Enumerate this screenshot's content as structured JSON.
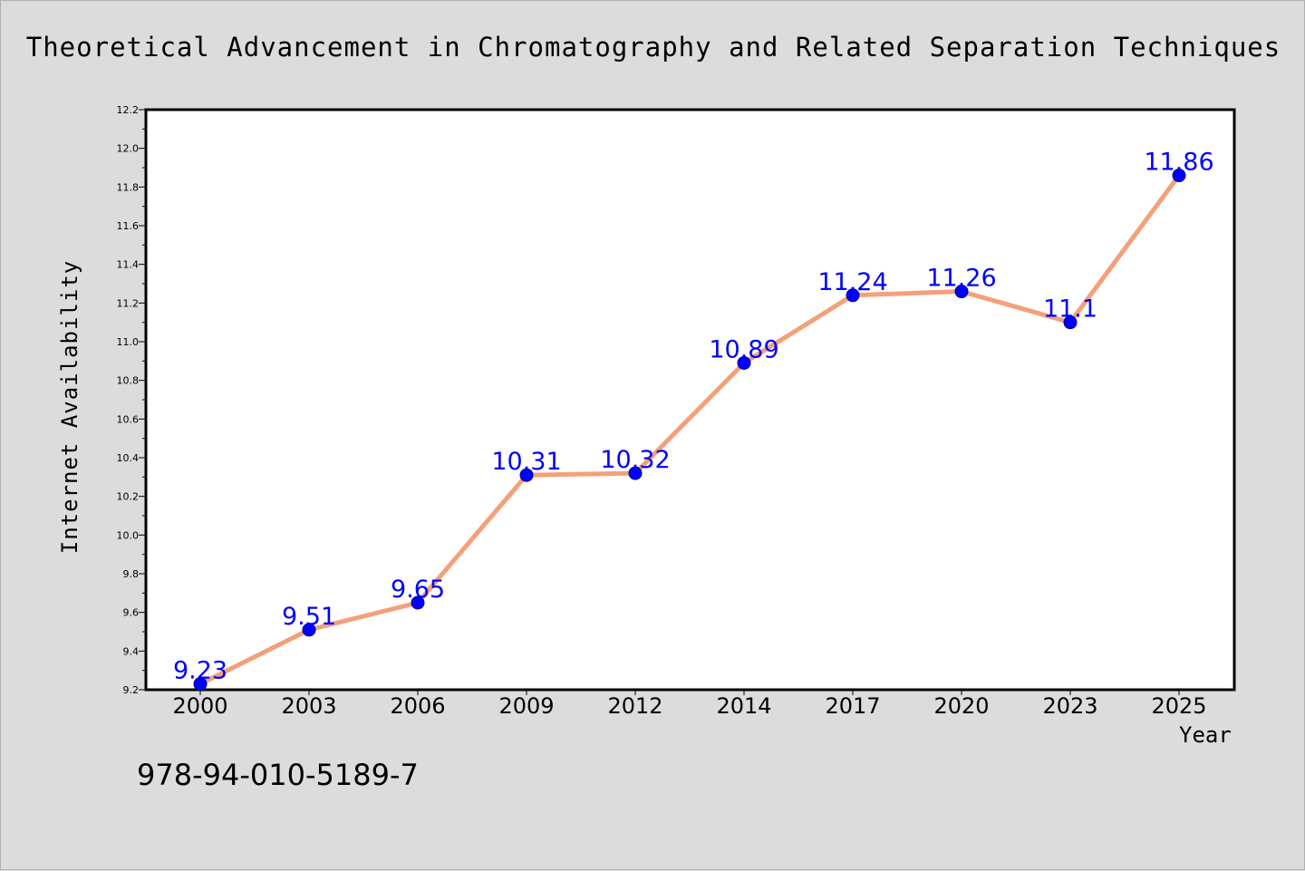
{
  "chart_data": {
    "type": "line",
    "title": "Theoretical Advancement in Chromatography and Related Separation Techniques",
    "xlabel": "Year",
    "ylabel": "Internet Availability",
    "categories": [
      "2000",
      "2003",
      "2006",
      "2009",
      "2012",
      "2014",
      "2017",
      "2020",
      "2023",
      "2025"
    ],
    "series": [
      {
        "values": [
          9.23,
          9.51,
          9.65,
          10.31,
          10.32,
          10.89,
          11.24,
          11.26,
          11.1,
          11.86
        ]
      }
    ],
    "data_labels": [
      "9.23",
      "9.51",
      "9.65",
      "10.31",
      "10.32",
      "10.89",
      "11.24",
      "11.26",
      "11.1",
      "11.86"
    ],
    "ylim": [
      9.2,
      12.2
    ],
    "yticks": [
      "9.2",
      "9.4",
      "9.6",
      "9.8",
      "10.0",
      "10.2",
      "10.4",
      "10.6",
      "10.8",
      "11.0",
      "11.2",
      "11.4",
      "11.6",
      "11.8",
      "12.0",
      "12.2"
    ],
    "grid": false,
    "legend": "none",
    "colors": {
      "line": "#f4a07a",
      "marker": "#0000ff",
      "data_label": "#0000ff",
      "background": "#dcdcdc",
      "plot_area": "#ffffff"
    }
  },
  "footer": {
    "code": "978-94-010-5189-7"
  }
}
